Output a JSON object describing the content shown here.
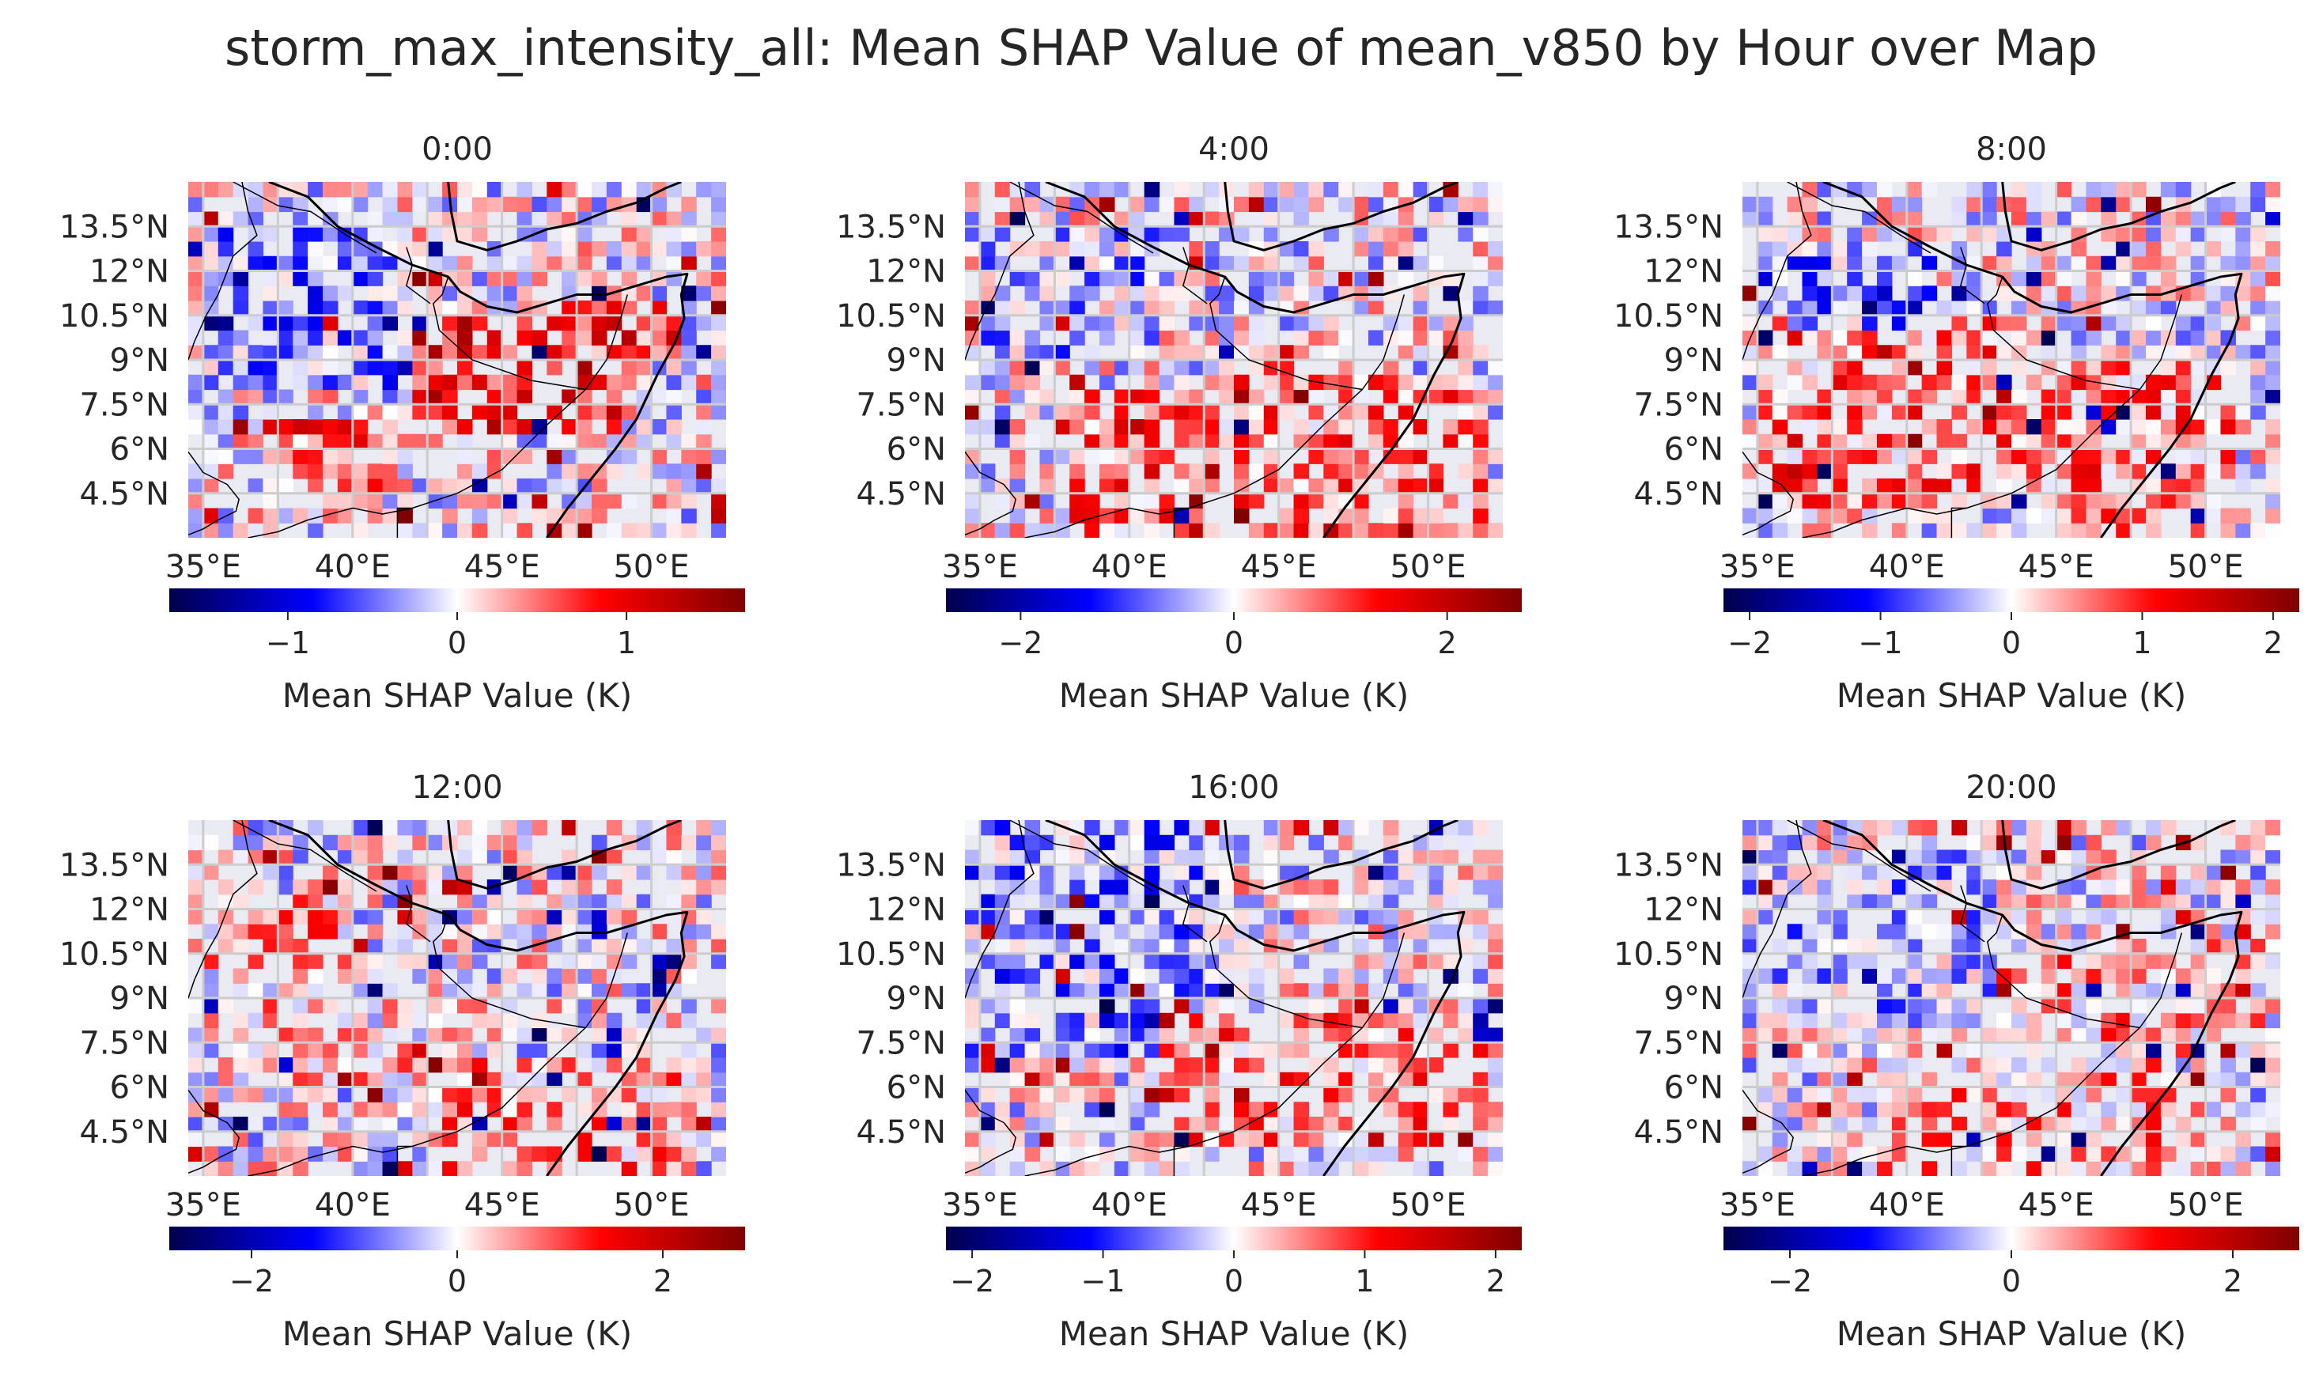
{
  "title": "storm_max_intensity_all: Mean SHAP Value of mean_v850 by Hour over Map",
  "colors": {
    "background": "#ffffff",
    "map_background": "#eaeaf2",
    "grid": "#cccccc",
    "coast": "#000000",
    "text": "#262626",
    "colormap": [
      "#00004c",
      "#0000ff",
      "#ffffff",
      "#ff0000",
      "#7f0000"
    ]
  },
  "chart_data": [
    {
      "type": "heatmap",
      "title": "0:00",
      "x_ticks": [
        "35°E",
        "40°E",
        "45°E",
        "50°E"
      ],
      "y_ticks": [
        "13.5°N",
        "12°N",
        "10.5°N",
        "9°N",
        "7.5°N",
        "6°N",
        "4.5°N"
      ],
      "lon_range": [
        34.5,
        52.5
      ],
      "lat_range": [
        3.0,
        15.0
      ],
      "colorbar": {
        "label": "Mean SHAP Value (K)",
        "range": [
          -1.7,
          1.7
        ],
        "ticks": [
          -1,
          0,
          1
        ]
      },
      "cell_summary": [
        {
          "lon": [
            34.5,
            52.5
          ],
          "lat": [
            3.0,
            15.0
          ],
          "value": 0.0
        },
        {
          "lon": [
            35.0,
            42.0
          ],
          "lat": [
            8.0,
            13.5
          ],
          "value": -0.4
        },
        {
          "lon": [
            42.0,
            49.0
          ],
          "lat": [
            6.5,
            10.5
          ],
          "value": 0.9
        },
        {
          "lon": [
            37.0,
            41.0
          ],
          "lat": [
            4.5,
            7.0
          ],
          "value": 0.6
        },
        {
          "lon": [
            46.0,
            51.0
          ],
          "lat": [
            9.0,
            11.0
          ],
          "value": 0.7
        }
      ]
    },
    {
      "type": "heatmap",
      "title": "4:00",
      "x_ticks": [
        "35°E",
        "40°E",
        "45°E",
        "50°E"
      ],
      "y_ticks": [
        "13.5°N",
        "12°N",
        "10.5°N",
        "9°N",
        "7.5°N",
        "6°N",
        "4.5°N"
      ],
      "lon_range": [
        34.5,
        52.5
      ],
      "lat_range": [
        3.0,
        15.0
      ],
      "colorbar": {
        "label": "Mean SHAP Value (K)",
        "range": [
          -2.7,
          2.7
        ],
        "ticks": [
          -2,
          0,
          2
        ]
      },
      "cell_summary": [
        {
          "lon": [
            34.5,
            52.5
          ],
          "lat": [
            3.0,
            15.0
          ],
          "value": 0.0
        },
        {
          "lon": [
            35.0,
            41.0
          ],
          "lat": [
            9.0,
            13.5
          ],
          "value": -0.4
        },
        {
          "lon": [
            38.0,
            52.0
          ],
          "lat": [
            3.0,
            8.0
          ],
          "value": 0.8
        },
        {
          "lon": [
            43.0,
            49.0
          ],
          "lat": [
            6.5,
            9.0
          ],
          "value": 0.7
        }
      ]
    },
    {
      "type": "heatmap",
      "title": "8:00",
      "x_ticks": [
        "35°E",
        "40°E",
        "45°E",
        "50°E"
      ],
      "y_ticks": [
        "13.5°N",
        "12°N",
        "10.5°N",
        "9°N",
        "7.5°N",
        "6°N",
        "4.5°N"
      ],
      "lon_range": [
        34.5,
        52.5
      ],
      "lat_range": [
        3.0,
        15.0
      ],
      "colorbar": {
        "label": "Mean SHAP Value (K)",
        "range": [
          -2.2,
          2.2
        ],
        "ticks": [
          -2,
          -1,
          0,
          1,
          2
        ]
      },
      "cell_summary": [
        {
          "lon": [
            34.5,
            52.5
          ],
          "lat": [
            3.0,
            15.0
          ],
          "value": 0.0
        },
        {
          "lon": [
            35.0,
            44.0
          ],
          "lat": [
            4.0,
            10.5
          ],
          "value": 0.6
        },
        {
          "lon": [
            36.0,
            41.0
          ],
          "lat": [
            10.0,
            13.0
          ],
          "value": -0.5
        },
        {
          "lon": [
            44.0,
            51.0
          ],
          "lat": [
            3.0,
            9.0
          ],
          "value": 0.6
        }
      ]
    },
    {
      "type": "heatmap",
      "title": "12:00",
      "x_ticks": [
        "35°E",
        "40°E",
        "45°E",
        "50°E"
      ],
      "y_ticks": [
        "13.5°N",
        "12°N",
        "10.5°N",
        "9°N",
        "7.5°N",
        "6°N",
        "4.5°N"
      ],
      "lon_range": [
        34.5,
        52.5
      ],
      "lat_range": [
        3.0,
        15.0
      ],
      "colorbar": {
        "label": "Mean SHAP Value (K)",
        "range": [
          -2.8,
          2.8
        ],
        "ticks": [
          -2,
          0,
          2
        ]
      },
      "cell_summary": [
        {
          "lon": [
            34.5,
            52.5
          ],
          "lat": [
            3.0,
            15.0
          ],
          "value": 0.0
        },
        {
          "lon": [
            35.0,
            40.0
          ],
          "lat": [
            10.0,
            12.5
          ],
          "value": 0.5
        },
        {
          "lon": [
            43.0,
            51.0
          ],
          "lat": [
            3.0,
            7.0
          ],
          "value": 0.7
        },
        {
          "lon": [
            36.0,
            43.0
          ],
          "lat": [
            6.0,
            9.5
          ],
          "value": 0.3
        }
      ]
    },
    {
      "type": "heatmap",
      "title": "16:00",
      "x_ticks": [
        "35°E",
        "40°E",
        "45°E",
        "50°E"
      ],
      "y_ticks": [
        "13.5°N",
        "12°N",
        "10.5°N",
        "9°N",
        "7.5°N",
        "6°N",
        "4.5°N"
      ],
      "lon_range": [
        34.5,
        52.5
      ],
      "lat_range": [
        3.0,
        15.0
      ],
      "colorbar": {
        "label": "Mean SHAP Value (K)",
        "range": [
          -2.2,
          2.2
        ],
        "ticks": [
          -2,
          -1,
          0,
          1,
          2
        ]
      },
      "cell_summary": [
        {
          "lon": [
            34.5,
            52.5
          ],
          "lat": [
            3.0,
            15.0
          ],
          "value": 0.0
        },
        {
          "lon": [
            34.5,
            43.0
          ],
          "lat": [
            7.0,
            15.0
          ],
          "value": -0.5
        },
        {
          "lon": [
            41.0,
            52.0
          ],
          "lat": [
            4.0,
            8.5
          ],
          "value": 0.6
        },
        {
          "lon": [
            43.0,
            46.0
          ],
          "lat": [
            5.0,
            6.0
          ],
          "value": 1.3
        }
      ]
    },
    {
      "type": "heatmap",
      "title": "20:00",
      "x_ticks": [
        "35°E",
        "40°E",
        "45°E",
        "50°E"
      ],
      "y_ticks": [
        "13.5°N",
        "12°N",
        "10.5°N",
        "9°N",
        "7.5°N",
        "6°N",
        "4.5°N"
      ],
      "lon_range": [
        34.5,
        52.5
      ],
      "lat_range": [
        3.0,
        15.0
      ],
      "colorbar": {
        "label": "Mean SHAP Value (K)",
        "range": [
          -2.6,
          2.6
        ],
        "ticks": [
          -2,
          0,
          2
        ]
      },
      "cell_summary": [
        {
          "lon": [
            34.5,
            52.5
          ],
          "lat": [
            3.0,
            15.0
          ],
          "value": 0.0
        },
        {
          "lon": [
            34.5,
            43.0
          ],
          "lat": [
            8.0,
            14.0
          ],
          "value": -0.35
        },
        {
          "lon": [
            43.0,
            52.0
          ],
          "lat": [
            7.0,
            11.0
          ],
          "value": 0.45
        },
        {
          "lon": [
            39.0,
            49.0
          ],
          "lat": [
            3.0,
            7.0
          ],
          "value": 0.5
        }
      ]
    }
  ]
}
